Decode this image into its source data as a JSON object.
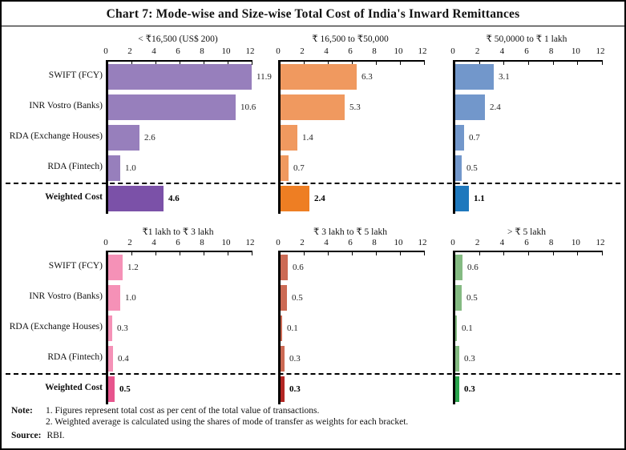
{
  "title": "Chart 7: Mode-wise and Size-wise Total Cost of India's Inward Remittances",
  "chart_data": {
    "type": "bar",
    "orientation": "horizontal",
    "axis_position": "top",
    "grid": false,
    "categories": [
      "SWIFT (FCY)",
      "INR Vostro (Banks)",
      "RDA (Exchange Houses)",
      "RDA (Fintech)",
      "Weighted Cost"
    ],
    "xlim": [
      0,
      12
    ],
    "ticks": [
      0,
      2,
      4,
      6,
      8,
      10,
      12
    ],
    "weighted_row_index": 4,
    "panels": [
      {
        "title": "< ₹16,500 (US$ 200)",
        "values": [
          11.9,
          10.6,
          2.6,
          1.0,
          4.6
        ],
        "value_labels": [
          "11.9",
          "10.6",
          "2.6",
          "1.0",
          "4.6"
        ],
        "bar_color": "#977fbc",
        "weighted_color": "#7b51a8"
      },
      {
        "title": "₹ 16,500 to ₹50,000",
        "values": [
          6.3,
          5.3,
          1.4,
          0.7,
          2.4
        ],
        "value_labels": [
          "6.3",
          "5.3",
          "1.4",
          "0.7",
          "2.4"
        ],
        "bar_color": "#f0995f",
        "weighted_color": "#ee7e23"
      },
      {
        "title": "₹ 50,0000 to ₹ 1 lakh",
        "values": [
          3.1,
          2.4,
          0.7,
          0.5,
          1.1
        ],
        "value_labels": [
          "3.1",
          "2.4",
          "0.7",
          "0.5",
          "1.1"
        ],
        "bar_color": "#7297cb",
        "weighted_color": "#1e78bd"
      },
      {
        "title": "₹1 lakh to ₹ 3 lakh",
        "values": [
          1.2,
          1.0,
          0.3,
          0.4,
          0.5
        ],
        "value_labels": [
          "1.2",
          "1.0",
          "0.3",
          "0.4",
          "0.5"
        ],
        "bar_color": "#f591b7",
        "weighted_color": "#e7548d"
      },
      {
        "title": "₹ 3 lakh to ₹ 5 lakh",
        "values": [
          0.6,
          0.5,
          0.1,
          0.3,
          0.3
        ],
        "value_labels": [
          "0.6",
          "0.5",
          "0.1",
          "0.3",
          "0.3"
        ],
        "bar_color": "#cc6a54",
        "weighted_color": "#b32724"
      },
      {
        "title": "> ₹ 5 lakh",
        "values": [
          0.6,
          0.5,
          0.1,
          0.3,
          0.3
        ],
        "value_labels": [
          "0.6",
          "0.5",
          "0.1",
          "0.3",
          "0.3"
        ],
        "bar_color": "#84ba82",
        "weighted_color": "#2aa34c"
      }
    ]
  },
  "notes": {
    "note_label": "Note:",
    "lines": [
      "1. Figures represent total cost as per cent of the total value of transactions.",
      "2. Weighted average is calculated using the shares of mode of transfer as weights for each bracket."
    ],
    "source_label": "Source:",
    "source_text": "RBI."
  }
}
